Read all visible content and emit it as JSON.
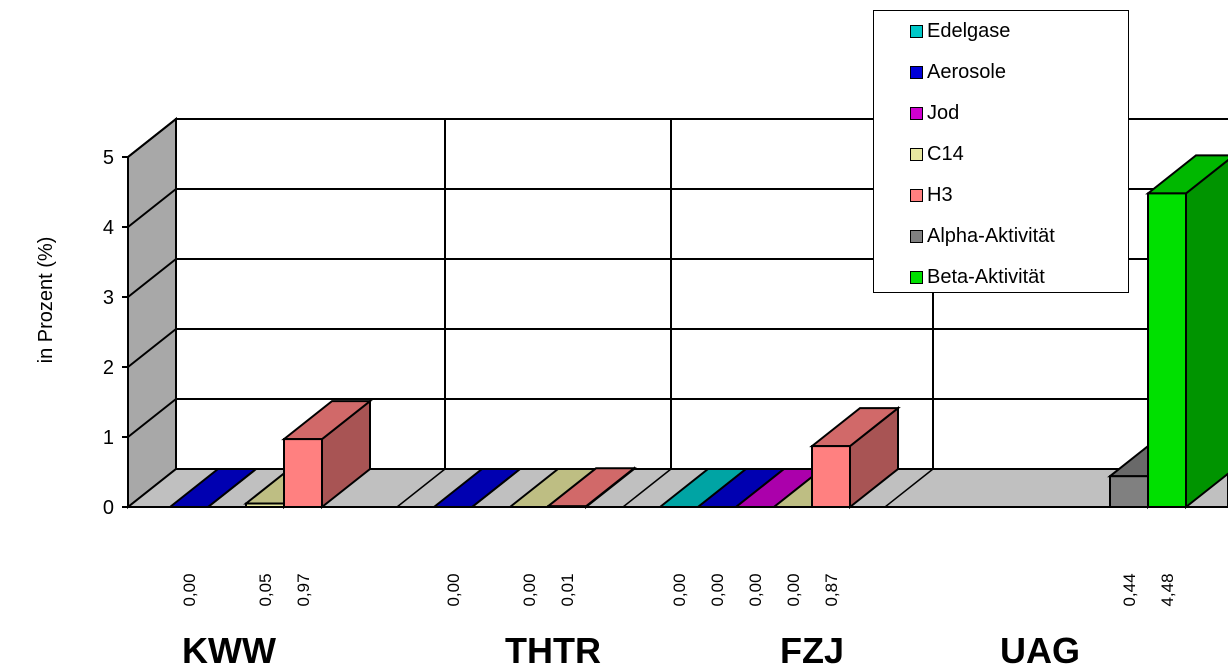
{
  "chart_data": {
    "type": "bar",
    "ylabel": "in Prozent (%)",
    "ylim": [
      0,
      5
    ],
    "yticks": [
      "0",
      "1",
      "2",
      "3",
      "4",
      "5"
    ],
    "grid": true,
    "legend_position": "top-right",
    "categories": [
      "KWW",
      "THTR",
      "FZJ",
      "UAG"
    ],
    "series": [
      {
        "name": "Edelgase",
        "color": "#00C8C8",
        "values": [
          null,
          null,
          0.0,
          null
        ],
        "labels": [
          "",
          "",
          "0,00",
          ""
        ]
      },
      {
        "name": "Aerosole",
        "color": "#0000D8",
        "values": [
          0.0,
          0.0,
          0.0,
          null
        ],
        "labels": [
          "0,00",
          "0,00",
          "0,00",
          ""
        ]
      },
      {
        "name": "Jod",
        "color": "#D000D0",
        "values": [
          null,
          null,
          0.0,
          null
        ],
        "labels": [
          "",
          "",
          "0,00",
          ""
        ]
      },
      {
        "name": "C14",
        "color": "#E8E8A0",
        "values": [
          0.05,
          0.0,
          0.0,
          null
        ],
        "labels": [
          "0,05",
          "0,00",
          "0,00",
          ""
        ]
      },
      {
        "name": "H3",
        "color": "#FF8080",
        "values": [
          0.97,
          0.01,
          0.87,
          null
        ],
        "labels": [
          "0,97",
          "0,01",
          "0,87",
          ""
        ]
      },
      {
        "name": "Alpha-Aktivität",
        "color": "#808080",
        "values": [
          null,
          null,
          null,
          0.44
        ],
        "labels": [
          "",
          "",
          "",
          "0,44"
        ]
      },
      {
        "name": "Beta-Aktivität",
        "color": "#00E000",
        "values": [
          null,
          null,
          null,
          4.48
        ],
        "labels": [
          "",
          "",
          "",
          "4,48"
        ]
      }
    ]
  }
}
